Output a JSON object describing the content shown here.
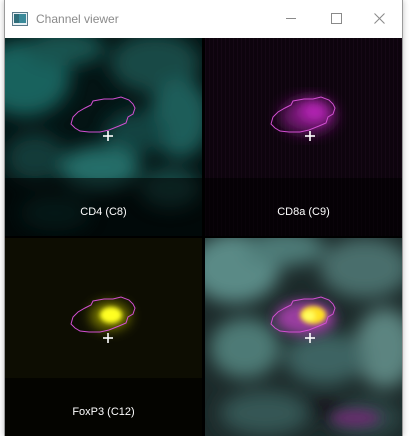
{
  "window": {
    "title": "Channel viewer"
  },
  "panels": [
    {
      "label": "CD4 (C8)",
      "channel_color": "#2fa7a0"
    },
    {
      "label": "CD8a (C9)",
      "channel_color": "#c020c0"
    },
    {
      "label": "FoxP3 (C12)",
      "channel_color": "#f2f000"
    },
    {
      "label": "",
      "channel_color": "composite"
    }
  ],
  "outline_color": "#d24fd2",
  "crosshair_color": "#ffffff",
  "icons": {
    "app": "image-viewer-icon",
    "minimize": "minimize-icon",
    "maximize": "maximize-icon",
    "close": "close-icon"
  }
}
